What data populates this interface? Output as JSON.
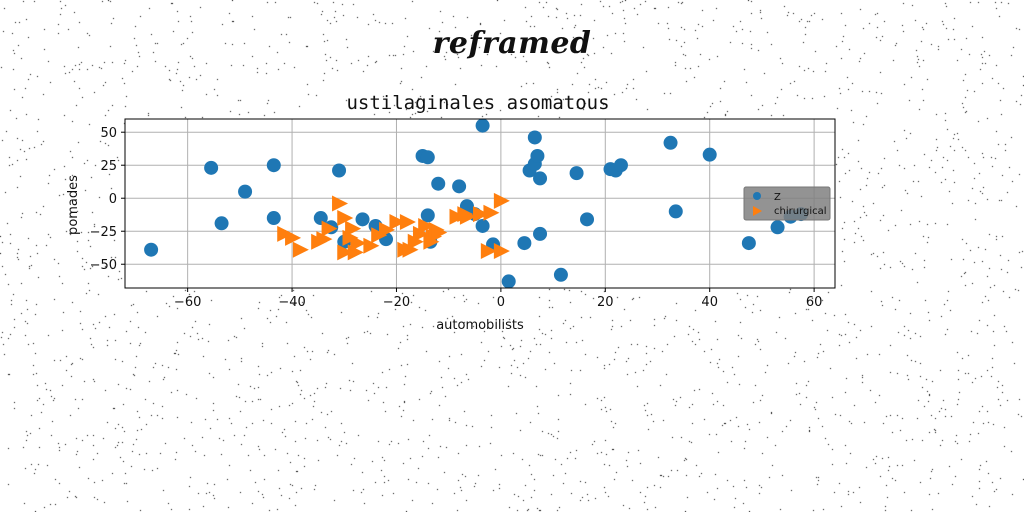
{
  "figure": {
    "suptitle": "reframed"
  },
  "chart_data": {
    "type": "scatter",
    "title": "ustilaginales asomatous",
    "xlabel": "automobilists",
    "ylabel": "pomades",
    "xlim": [
      -72,
      64
    ],
    "ylim": [
      -68,
      60
    ],
    "xticks": [
      -60,
      -40,
      -20,
      0,
      20,
      40,
      60
    ],
    "xtick_labels": [
      "−60",
      "−40",
      "−20",
      "0",
      "20",
      "40",
      "60"
    ],
    "yticks": [
      -50,
      -25,
      0,
      25,
      50
    ],
    "ytick_labels": [
      "−50",
      "−25",
      "0",
      "25",
      "50"
    ],
    "grid": true,
    "legend": {
      "position": "center-right"
    },
    "series": [
      {
        "name": "Z",
        "marker": "circle",
        "color": "#1f77b4",
        "points": [
          [
            -67,
            -39
          ],
          [
            -55.5,
            23
          ],
          [
            -53.5,
            -19
          ],
          [
            -49,
            5
          ],
          [
            -43.5,
            25
          ],
          [
            -43.5,
            -15
          ],
          [
            -34.5,
            -15
          ],
          [
            -32.5,
            -22
          ],
          [
            -31,
            21
          ],
          [
            -30,
            -33
          ],
          [
            -26.5,
            -16
          ],
          [
            -24,
            -21
          ],
          [
            -22,
            -31
          ],
          [
            -15,
            32
          ],
          [
            -14,
            31
          ],
          [
            -13.5,
            -33
          ],
          [
            -12,
            11
          ],
          [
            -14,
            -13
          ],
          [
            -8,
            9
          ],
          [
            -6.5,
            -6
          ],
          [
            -5,
            -12
          ],
          [
            -3.5,
            55
          ],
          [
            -3.5,
            -21
          ],
          [
            -1.5,
            -35
          ],
          [
            1.5,
            -63
          ],
          [
            4.5,
            -34
          ],
          [
            5.5,
            21
          ],
          [
            6.5,
            26
          ],
          [
            6.5,
            46
          ],
          [
            7,
            32
          ],
          [
            7.5,
            15
          ],
          [
            7.5,
            -27
          ],
          [
            11.5,
            -58
          ],
          [
            14.5,
            19
          ],
          [
            16.5,
            -16
          ],
          [
            21,
            22
          ],
          [
            22,
            21
          ],
          [
            23,
            25
          ],
          [
            32.5,
            42
          ],
          [
            33.5,
            -10
          ],
          [
            40,
            33
          ],
          [
            47.5,
            -34
          ],
          [
            53,
            -22
          ],
          [
            55.5,
            -14
          ],
          [
            57.5,
            -12
          ]
        ]
      },
      {
        "name": "chirurgical",
        "marker": "triangle-right",
        "color": "#ff7f0e",
        "points": [
          [
            -41.5,
            -27
          ],
          [
            -40,
            -30
          ],
          [
            -38.5,
            -39
          ],
          [
            -35,
            -33
          ],
          [
            -34,
            -31
          ],
          [
            -33,
            -23
          ],
          [
            -31,
            -4
          ],
          [
            -30,
            -41
          ],
          [
            -30,
            -15
          ],
          [
            -29,
            -30
          ],
          [
            -28.5,
            -23
          ],
          [
            -28,
            -41
          ],
          [
            -27.5,
            -34
          ],
          [
            -25,
            -36
          ],
          [
            -23.5,
            -28
          ],
          [
            -22,
            -24
          ],
          [
            -20,
            -18
          ],
          [
            -18.5,
            -39
          ],
          [
            -18,
            -18
          ],
          [
            -17.5,
            -39
          ],
          [
            -16.5,
            -33
          ],
          [
            -15.5,
            -27
          ],
          [
            -14.5,
            -21
          ],
          [
            -13.5,
            -33
          ],
          [
            -13,
            -29
          ],
          [
            -12.5,
            -24
          ],
          [
            -12,
            -26
          ],
          [
            -8.5,
            -14
          ],
          [
            -7,
            -12
          ],
          [
            -6.5,
            -14
          ],
          [
            -4,
            -12
          ],
          [
            -2.5,
            -40
          ],
          [
            -2,
            -11
          ],
          [
            0,
            -40
          ],
          [
            0,
            -2
          ]
        ]
      }
    ]
  }
}
